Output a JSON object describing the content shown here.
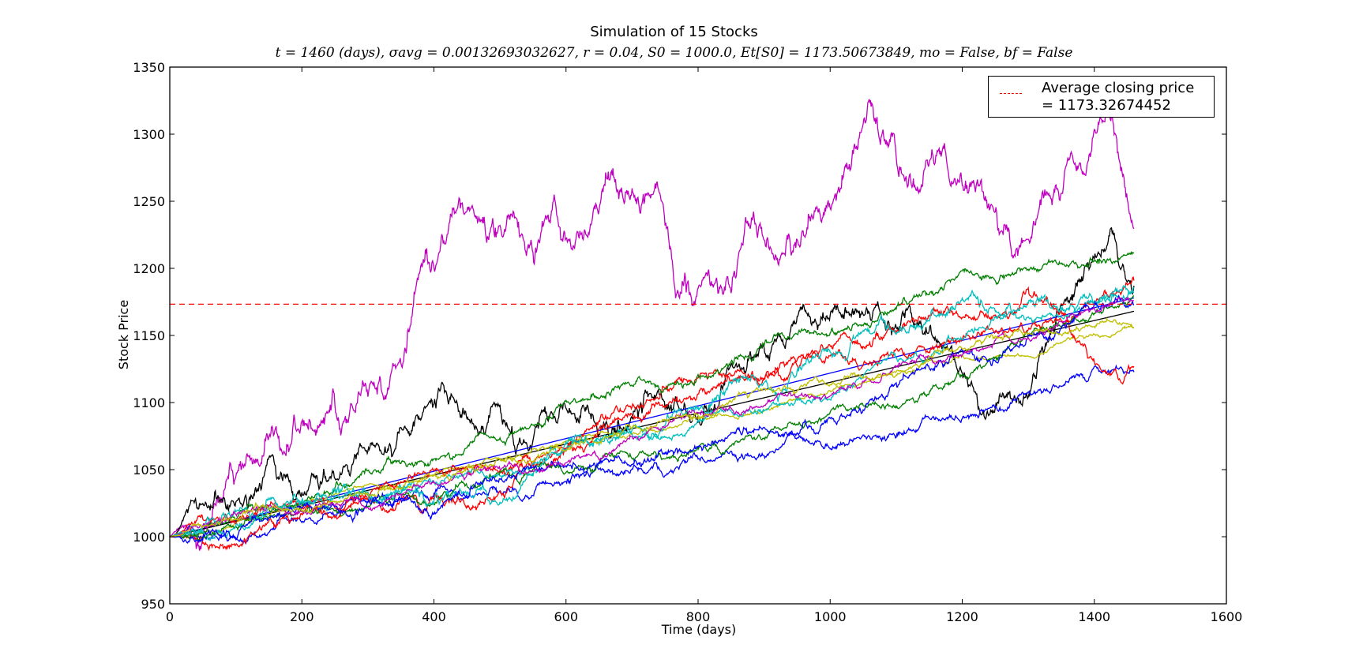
{
  "chart_data": {
    "type": "line",
    "title": "Simulation of 15 Stocks",
    "subtitle": "t = 1460 (days), σavg = 0.00132693032627, r = 0.04, S0 = 1000.0, Et[S0] = 1173.50673849, mo = False, bf = False",
    "xlabel": "Time (days)",
    "ylabel": "Stock Price",
    "xlim": [
      0,
      1600
    ],
    "ylim": [
      950,
      1350
    ],
    "xticks": [
      "0",
      "200",
      "400",
      "600",
      "800",
      "1000",
      "1200",
      "1400",
      "1600"
    ],
    "yticks": [
      "950",
      "1000",
      "1050",
      "1100",
      "1150",
      "1200",
      "1250",
      "1300",
      "1350"
    ],
    "legend_position": "top-right",
    "legend_label": "Average closing price\n= 1173.32674452",
    "average_line": {
      "y": 1173.32674452,
      "color": "#ff0000",
      "style": "dashed"
    },
    "series": [
      {
        "color": "#bf00bf",
        "volatility": 9.0,
        "seed": 11,
        "points": [
          [
            0,
            1000
          ],
          [
            40,
            1020
          ],
          [
            80,
            1048
          ],
          [
            120,
            1065
          ],
          [
            160,
            1062
          ],
          [
            200,
            1078
          ],
          [
            240,
            1088
          ],
          [
            280,
            1090
          ],
          [
            300,
            1110
          ],
          [
            330,
            1130
          ],
          [
            350,
            1155
          ],
          [
            365,
            1175
          ],
          [
            380,
            1215
          ],
          [
            420,
            1215
          ],
          [
            460,
            1225
          ],
          [
            500,
            1235
          ],
          [
            540,
            1230
          ],
          [
            580,
            1243
          ],
          [
            620,
            1223
          ],
          [
            660,
            1255
          ],
          [
            700,
            1235
          ],
          [
            740,
            1215
          ],
          [
            770,
            1172
          ],
          [
            800,
            1198
          ],
          [
            840,
            1200
          ],
          [
            880,
            1215
          ],
          [
            920,
            1212
          ],
          [
            960,
            1220
          ],
          [
            1000,
            1262
          ],
          [
            1040,
            1287
          ],
          [
            1060,
            1308
          ],
          [
            1090,
            1298
          ],
          [
            1120,
            1270
          ],
          [
            1150,
            1290
          ],
          [
            1180,
            1292
          ],
          [
            1220,
            1282
          ],
          [
            1260,
            1270
          ],
          [
            1300,
            1250
          ],
          [
            1330,
            1275
          ],
          [
            1360,
            1290
          ],
          [
            1380,
            1265
          ],
          [
            1400,
            1295
          ],
          [
            1420,
            1290
          ],
          [
            1440,
            1260
          ],
          [
            1460,
            1220
          ]
        ]
      },
      {
        "color": "#000000",
        "volatility": 6.5,
        "seed": 23,
        "points": [
          [
            0,
            1000
          ],
          [
            30,
            1010
          ],
          [
            60,
            1002
          ],
          [
            90,
            990
          ],
          [
            120,
            1008
          ],
          [
            150,
            1035
          ],
          [
            180,
            1028
          ],
          [
            210,
            1025
          ],
          [
            250,
            1048
          ],
          [
            290,
            1055
          ],
          [
            330,
            1052
          ],
          [
            370,
            1075
          ],
          [
            410,
            1082
          ],
          [
            440,
            1068
          ],
          [
            470,
            1080
          ],
          [
            500,
            1100
          ],
          [
            530,
            1082
          ],
          [
            560,
            1075
          ],
          [
            600,
            1070
          ],
          [
            640,
            1068
          ],
          [
            680,
            1075
          ],
          [
            720,
            1078
          ],
          [
            760,
            1070
          ],
          [
            800,
            1080
          ],
          [
            840,
            1115
          ],
          [
            880,
            1145
          ],
          [
            920,
            1155
          ],
          [
            960,
            1170
          ],
          [
            1000,
            1165
          ],
          [
            1040,
            1175
          ],
          [
            1080,
            1178
          ],
          [
            1120,
            1172
          ],
          [
            1160,
            1165
          ],
          [
            1190,
            1150
          ],
          [
            1230,
            1125
          ],
          [
            1270,
            1120
          ],
          [
            1300,
            1140
          ],
          [
            1340,
            1165
          ],
          [
            1370,
            1185
          ],
          [
            1400,
            1190
          ],
          [
            1430,
            1200
          ],
          [
            1460,
            1170
          ]
        ]
      },
      {
        "color": "#0000ff",
        "volatility": 0.0,
        "seed": 0,
        "points": [
          [
            0,
            1000
          ],
          [
            1460,
            1178
          ]
        ]
      },
      {
        "color": "#000000",
        "volatility": 0.0,
        "seed": 0,
        "points": [
          [
            0,
            1000
          ],
          [
            1460,
            1168
          ]
        ]
      },
      {
        "color": "#bfbf00",
        "volatility": 1.4,
        "seed": 31,
        "points": [
          [
            0,
            1000
          ],
          [
            1460,
            1158
          ]
        ]
      },
      {
        "color": "#0000ff",
        "volatility": 2.8,
        "seed": 37,
        "points": [
          [
            0,
            1000
          ],
          [
            200,
            1010
          ],
          [
            400,
            1028
          ],
          [
            600,
            1042
          ],
          [
            800,
            1055
          ],
          [
            1000,
            1070
          ],
          [
            1200,
            1088
          ],
          [
            1350,
            1110
          ],
          [
            1400,
            1125
          ],
          [
            1460,
            1123
          ]
        ]
      },
      {
        "color": "#ff0000",
        "volatility": 3.6,
        "seed": 41,
        "points": [
          [
            0,
            1000
          ],
          [
            60,
            990
          ],
          [
            150,
            1005
          ],
          [
            250,
            1020
          ],
          [
            350,
            1040
          ],
          [
            400,
            1020
          ],
          [
            500,
            1040
          ],
          [
            600,
            1070
          ],
          [
            700,
            1100
          ],
          [
            800,
            1120
          ],
          [
            900,
            1125
          ],
          [
            1000,
            1140
          ],
          [
            1100,
            1150
          ],
          [
            1200,
            1160
          ],
          [
            1300,
            1168
          ],
          [
            1360,
            1160
          ],
          [
            1400,
            1125
          ],
          [
            1440,
            1115
          ],
          [
            1460,
            1125
          ]
        ]
      },
      {
        "color": "#ff0000",
        "volatility": 3.2,
        "seed": 43,
        "points": [
          [
            0,
            1000
          ],
          [
            200,
            1025
          ],
          [
            400,
            1045
          ],
          [
            600,
            1065
          ],
          [
            800,
            1105
          ],
          [
            1000,
            1125
          ],
          [
            1200,
            1150
          ],
          [
            1300,
            1165
          ],
          [
            1400,
            1180
          ],
          [
            1460,
            1190
          ]
        ]
      },
      {
        "color": "#007f00",
        "volatility": 2.6,
        "seed": 47,
        "points": [
          [
            0,
            1000
          ],
          [
            200,
            1030
          ],
          [
            400,
            1060
          ],
          [
            600,
            1095
          ],
          [
            800,
            1118
          ],
          [
            900,
            1140
          ],
          [
            1000,
            1160
          ],
          [
            1100,
            1172
          ],
          [
            1200,
            1180
          ],
          [
            1300,
            1195
          ],
          [
            1400,
            1200
          ],
          [
            1460,
            1208
          ]
        ]
      },
      {
        "color": "#007f00",
        "volatility": 2.6,
        "seed": 53,
        "points": [
          [
            0,
            1000
          ],
          [
            200,
            1020
          ],
          [
            400,
            1035
          ],
          [
            600,
            1050
          ],
          [
            800,
            1070
          ],
          [
            1000,
            1095
          ],
          [
            1100,
            1110
          ],
          [
            1200,
            1130
          ],
          [
            1300,
            1145
          ],
          [
            1400,
            1162
          ],
          [
            1460,
            1175
          ]
        ]
      },
      {
        "color": "#00bfbf",
        "volatility": 4.0,
        "seed": 59,
        "points": [
          [
            0,
            1000
          ],
          [
            150,
            1015
          ],
          [
            300,
            1030
          ],
          [
            400,
            1040
          ],
          [
            470,
            1025
          ],
          [
            500,
            1012
          ],
          [
            560,
            1035
          ],
          [
            600,
            1050
          ],
          [
            700,
            1080
          ],
          [
            800,
            1100
          ],
          [
            850,
            1120
          ],
          [
            900,
            1110
          ],
          [
            1000,
            1125
          ],
          [
            1100,
            1140
          ],
          [
            1200,
            1160
          ],
          [
            1250,
            1170
          ],
          [
            1300,
            1168
          ],
          [
            1400,
            1175
          ],
          [
            1460,
            1185
          ]
        ]
      },
      {
        "color": "#00bfbf",
        "volatility": 2.4,
        "seed": 61,
        "points": [
          [
            0,
            1000
          ],
          [
            300,
            1030
          ],
          [
            600,
            1060
          ],
          [
            900,
            1095
          ],
          [
            1100,
            1130
          ],
          [
            1300,
            1160
          ],
          [
            1460,
            1182
          ]
        ]
      },
      {
        "color": "#0000ff",
        "volatility": 3.0,
        "seed": 67,
        "points": [
          [
            0,
            1000
          ],
          [
            200,
            1020
          ],
          [
            400,
            1030
          ],
          [
            600,
            1050
          ],
          [
            800,
            1065
          ],
          [
            1000,
            1090
          ],
          [
            1100,
            1110
          ],
          [
            1200,
            1130
          ],
          [
            1280,
            1130
          ],
          [
            1340,
            1145
          ],
          [
            1400,
            1165
          ],
          [
            1460,
            1175
          ]
        ]
      },
      {
        "color": "#bf00bf",
        "volatility": 2.2,
        "seed": 71,
        "points": [
          [
            0,
            1000
          ],
          [
            300,
            1030
          ],
          [
            600,
            1060
          ],
          [
            900,
            1100
          ],
          [
            1200,
            1140
          ],
          [
            1460,
            1178
          ]
        ]
      },
      {
        "color": "#bfbf00",
        "volatility": 2.2,
        "seed": 73,
        "points": [
          [
            0,
            1000
          ],
          [
            300,
            1035
          ],
          [
            600,
            1070
          ],
          [
            900,
            1105
          ],
          [
            1200,
            1140
          ],
          [
            1460,
            1170
          ]
        ]
      }
    ]
  }
}
